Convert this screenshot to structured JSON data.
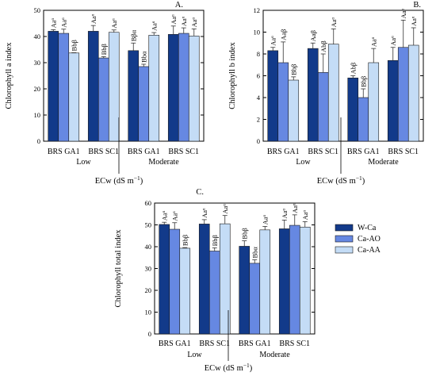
{
  "chart_data": [
    {
      "type": "bar",
      "panel_label": "A.",
      "ylabel": "Chlorophyll a index",
      "ylim": [
        0,
        50
      ],
      "yticks": [
        0,
        10,
        20,
        30,
        40,
        50
      ],
      "categories": [
        "BRS GA1",
        "BRS SC1",
        "BRS GA1",
        "BRS SC1"
      ],
      "groups": [
        "Low",
        "Moderate"
      ],
      "xlabel_base": "ECw (dS m",
      "xlabel_exp": "−1",
      "xlabel_close": ")",
      "series": [
        {
          "name": "W-Ca",
          "values": [
            42,
            42,
            34.6,
            40.8
          ],
          "errors": [
            0.6,
            2.2,
            2.9,
            3.2
          ],
          "labels": [
            "Aaᵅ",
            "Aaᵅ",
            "Bβα",
            "Aaᵅ"
          ]
        },
        {
          "name": "Ca-AO",
          "values": [
            41.2,
            31.8,
            28.5,
            41.2
          ],
          "errors": [
            1.6,
            0.5,
            0.9,
            2.1
          ],
          "labels": [
            "Aaᵅ",
            "Bbβ",
            "Bbα",
            "Aaᵅ"
          ]
        },
        {
          "name": "Ca-AA",
          "values": [
            33.7,
            41.6,
            40.5,
            40.2
          ],
          "errors": [
            0.1,
            0.9,
            1.0,
            2.7
          ],
          "labels": [
            "Bbβ",
            "Aaᵅ",
            "Aaᵅ",
            "Aaᵅ"
          ]
        }
      ]
    },
    {
      "type": "bar",
      "panel_label": "B.",
      "ylabel": "Chlorophyll b index",
      "ylim": [
        0,
        12
      ],
      "yticks": [
        0,
        2,
        4,
        6,
        8,
        10,
        12
      ],
      "categories": [
        "BRS GA1",
        "BRS SC1",
        "BRS GA1",
        "BRS SC1"
      ],
      "groups": [
        "Low",
        "Moderate"
      ],
      "xlabel_base": "ECw (dS m",
      "xlabel_exp": "−1",
      "xlabel_close": ")",
      "series": [
        {
          "name": "W-Ca",
          "values": [
            8.3,
            8.5,
            5.8,
            7.4
          ],
          "errors": [
            0.3,
            0.5,
            0.2,
            1.2
          ],
          "labels": [
            "Aaᵅ",
            "Aaβ",
            "Abβ",
            "Aaᵅ"
          ]
        },
        {
          "name": "Ca-AO",
          "values": [
            7.2,
            6.3,
            4.0,
            8.6
          ],
          "errors": [
            1.9,
            1.7,
            0.8,
            2.5
          ],
          "labels": [
            "Aaβ",
            "Abβ",
            "Bbβ",
            "Aaᵅ"
          ]
        },
        {
          "name": "Ca-AA",
          "values": [
            5.6,
            8.9,
            7.2,
            8.8
          ],
          "errors": [
            0.3,
            1.4,
            1.3,
            1.6
          ],
          "labels": [
            "Bbβ",
            "Aaᵅ",
            "Aaᵅ",
            "Aaᵅ"
          ]
        }
      ]
    },
    {
      "type": "bar",
      "panel_label": "C.",
      "ylabel": "Chlorophyll total index",
      "ylim": [
        0,
        60
      ],
      "yticks": [
        0,
        10,
        20,
        30,
        40,
        50,
        60
      ],
      "categories": [
        "BRS GA1",
        "BRS SC1",
        "BRS GA1",
        "BRS SC1"
      ],
      "groups": [
        "Low",
        "Moderate"
      ],
      "xlabel_base": "ECw (dS m",
      "xlabel_exp": "−1",
      "xlabel_close": ")",
      "series": [
        {
          "name": "W-Ca",
          "values": [
            50.2,
            50.4,
            40.2,
            48.2
          ],
          "errors": [
            1.0,
            2.0,
            2.5,
            4.0
          ],
          "labels": [
            "Aaᵅ",
            "Aaᵅ",
            "Bbβ",
            "Aaᵅ"
          ]
        },
        {
          "name": "Ca-AO",
          "values": [
            48.0,
            38.0,
            32.4,
            49.8
          ],
          "errors": [
            3.0,
            1.5,
            1.6,
            4.8
          ],
          "labels": [
            "Aaᵅ",
            "Bbβ",
            "Bbα",
            "Aaᵅ"
          ]
        },
        {
          "name": "Ca-AA",
          "values": [
            39.3,
            50.5,
            47.7,
            49.0
          ],
          "errors": [
            0.3,
            3.8,
            1.6,
            2.5
          ],
          "labels": [
            "Bbβ",
            "Aaᵅ",
            "Aaᵅ",
            "Aaᵅ"
          ]
        }
      ]
    }
  ],
  "legend": [
    {
      "name": "W-Ca",
      "color": "#123a8a"
    },
    {
      "name": "Ca-AO",
      "color": "#6688e2"
    },
    {
      "name": "Ca-AA",
      "color": "#c4dcf6"
    }
  ],
  "colors": {
    "W-Ca": "#123a8a",
    "Ca-AO": "#6688e2",
    "Ca-AA": "#c4dcf6"
  }
}
